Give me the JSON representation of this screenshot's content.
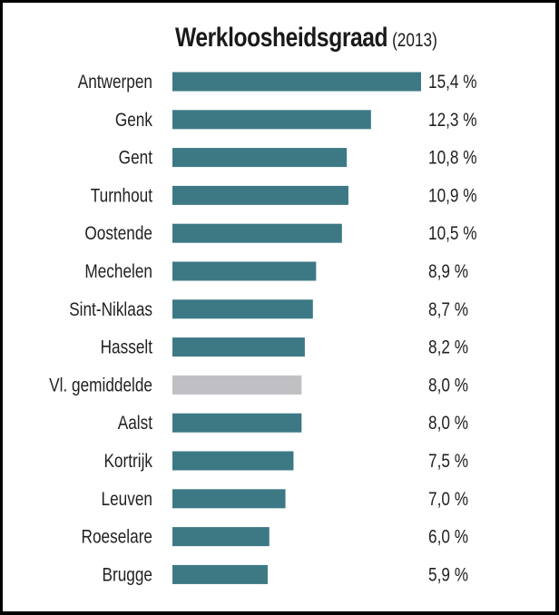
{
  "chart_data": {
    "type": "bar",
    "orientation": "horizontal",
    "title": "Werkloosheidsgraad",
    "subtitle": "(2013)",
    "categories": [
      "Antwerpen",
      "Genk",
      "Gent",
      "Turnhout",
      "Oostende",
      "Mechelen",
      "Sint-Niklaas",
      "Hasselt",
      "Vl. gemiddelde",
      "Aalst",
      "Kortrijk",
      "Leuven",
      "Roeselare",
      "Brugge"
    ],
    "values": [
      15.4,
      12.3,
      10.8,
      10.9,
      10.5,
      8.9,
      8.7,
      8.2,
      8.0,
      8.0,
      7.5,
      7.0,
      6.0,
      5.9
    ],
    "value_labels": [
      "15,4 %",
      "12,3 %",
      "10,8 %",
      "10,9 %",
      "10,5 %",
      "8,9 %",
      "8,7 %",
      "8,2 %",
      "8,0 %",
      "8,0 %",
      "7,5 %",
      "7,0 %",
      "6,0 %",
      "5,9 %"
    ],
    "highlight_category": "Vl. gemiddelde",
    "unit": "%",
    "xlim": [
      0,
      15.4
    ],
    "grid": false,
    "legend": "none",
    "colors": {
      "bar": "#3d7985",
      "highlight": "#c0c0c4",
      "text": "#222222"
    }
  }
}
